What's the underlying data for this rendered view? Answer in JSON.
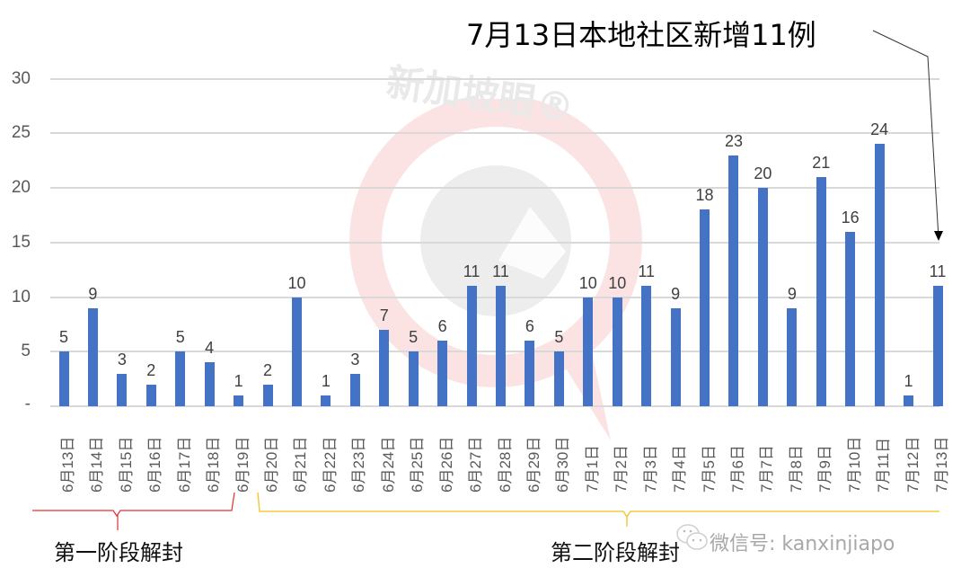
{
  "chart_data": {
    "type": "bar",
    "title": "7月13日本地社区新增11例",
    "xlabel": "",
    "ylabel": "",
    "ylim": [
      0,
      30
    ],
    "yticks": [
      "-",
      "5",
      "10",
      "15",
      "20",
      "25",
      "30"
    ],
    "grid": true,
    "legend": null,
    "bar_color": "#4472C4",
    "categories": [
      "6月13日",
      "6月14日",
      "6月15日",
      "6月16日",
      "6月17日",
      "6月18日",
      "6月19日",
      "6月20日",
      "6月21日",
      "6月22日",
      "6月23日",
      "6月24日",
      "6月25日",
      "6月26日",
      "6月27日",
      "6月28日",
      "6月29日",
      "6月30日",
      "7月1日",
      "7月2日",
      "7月3日",
      "7月4日",
      "7月5日",
      "7月6日",
      "7月7日",
      "7月8日",
      "7月9日",
      "7月10日",
      "7月11日",
      "7月12日",
      "7月13日"
    ],
    "values": [
      5,
      9,
      3,
      2,
      5,
      4,
      1,
      2,
      10,
      1,
      3,
      7,
      5,
      6,
      11,
      11,
      6,
      5,
      10,
      10,
      11,
      9,
      18,
      23,
      20,
      9,
      21,
      16,
      24,
      1,
      11
    ],
    "annotations": [
      {
        "text": "7月13日本地社区新增11例",
        "target": "7月13日",
        "type": "arrow"
      },
      {
        "text": "第一阶段解封",
        "range": [
          "6月13日",
          "6月19日"
        ],
        "color": "#e83030"
      },
      {
        "text": "第二阶段解封",
        "range": [
          "6月20日",
          "7月13日"
        ],
        "color": "#f5c842"
      }
    ]
  },
  "watermarks": {
    "brand": "新加坡眼®",
    "wechat": "微信号: kanxinjiapo"
  }
}
